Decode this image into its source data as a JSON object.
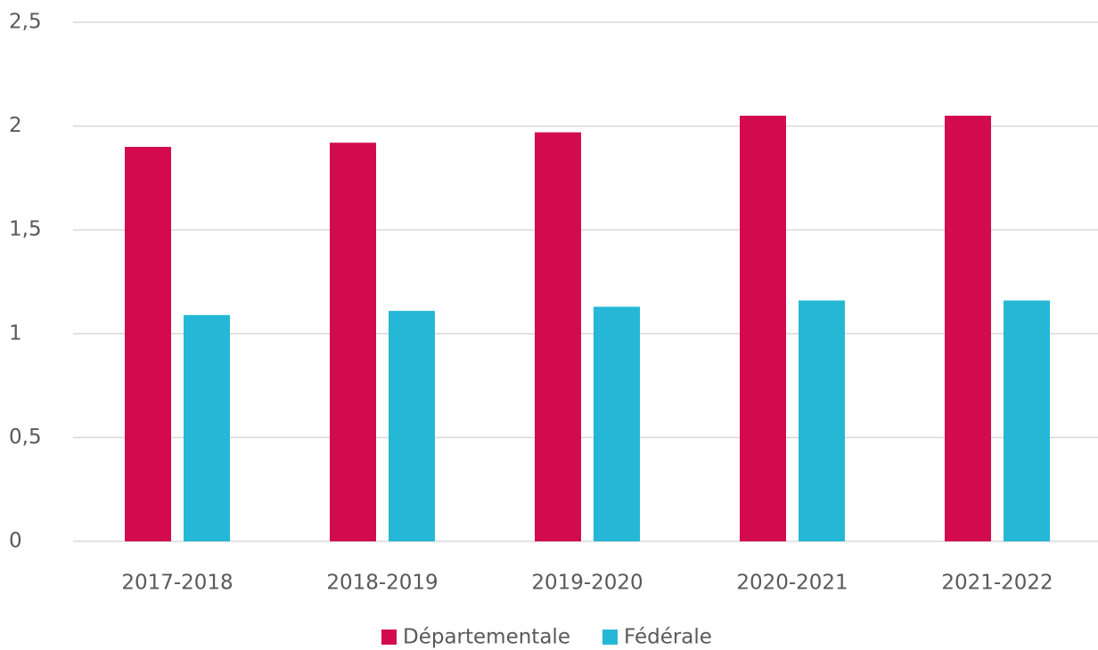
{
  "chart_data": {
    "type": "bar",
    "categories": [
      "2017-2018",
      "2018-2019",
      "2019-2020",
      "2020-2021",
      "2021-2022"
    ],
    "series": [
      {
        "name": "Départementale",
        "color": "#d30b4e",
        "values": [
          1.9,
          1.92,
          1.97,
          2.05,
          2.05
        ]
      },
      {
        "name": "Fédérale",
        "color": "#24b8d6",
        "values": [
          1.09,
          1.11,
          1.13,
          1.16,
          1.16
        ]
      }
    ],
    "ylim": [
      0,
      2.5
    ],
    "yticks": [
      0,
      {
        "value": 0.5,
        "label": "0,5"
      },
      1,
      {
        "value": 1.5,
        "label": "1,5"
      },
      2,
      {
        "value": 2.5,
        "label": "2,5"
      }
    ],
    "grid": true,
    "legend": "bottom"
  }
}
